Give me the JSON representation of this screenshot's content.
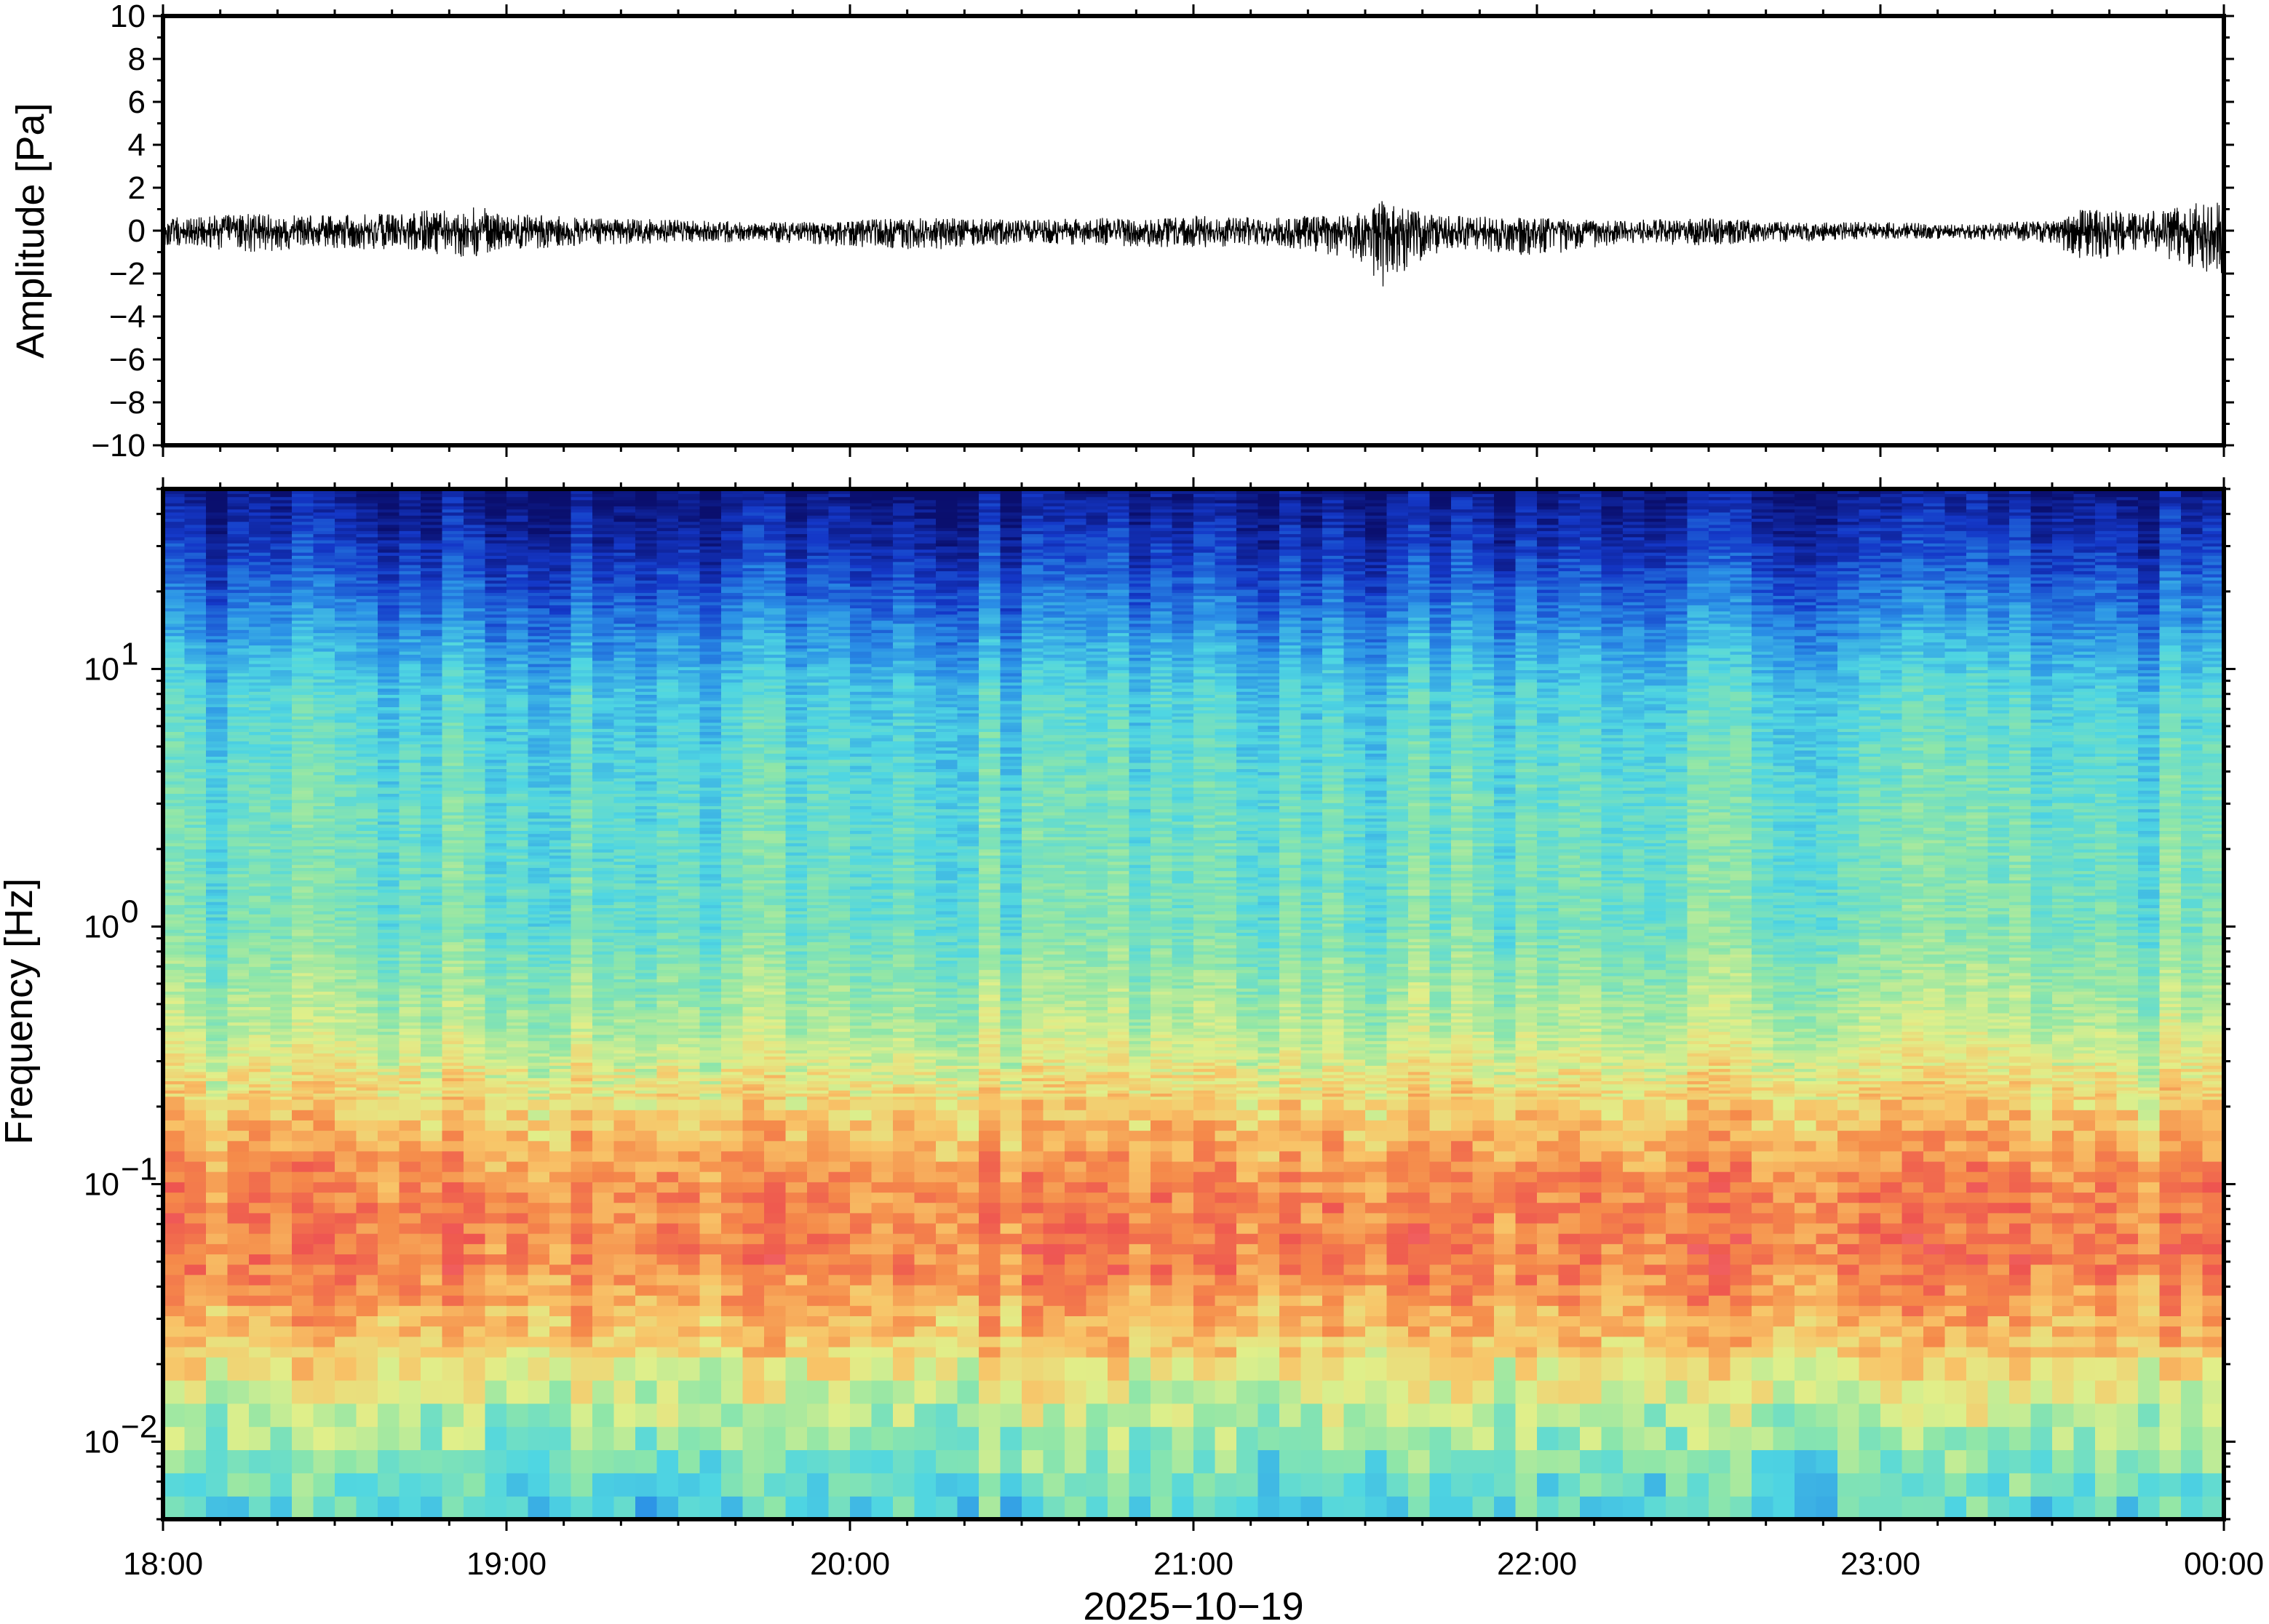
{
  "chart_data": [
    {
      "type": "line",
      "panel": "waveform",
      "ylabel": "Amplitude [Pa]",
      "ylim": [
        -10,
        10
      ],
      "yticks": [
        -10,
        -8,
        -6,
        -4,
        -2,
        0,
        2,
        4,
        6,
        8,
        10
      ],
      "ytick_labels": [
        "−10",
        "−8",
        "−6",
        "−4",
        "−2",
        "0",
        "2",
        "4",
        "6",
        "8",
        "10"
      ],
      "xlim": [
        "18:00",
        "00:00"
      ],
      "series": [
        {
          "color": "#000000",
          "envelope_hours": [
            18.0,
            18.25,
            18.5,
            18.75,
            18.9,
            19.0,
            19.25,
            19.5,
            19.75,
            20.0,
            20.25,
            20.5,
            20.75,
            21.0,
            21.25,
            21.5,
            21.55,
            21.6,
            21.75,
            22.0,
            22.25,
            22.5,
            22.75,
            23.0,
            23.25,
            23.5,
            23.6,
            23.75,
            24.0
          ],
          "envelope_max": [
            0.6,
            0.8,
            0.7,
            0.9,
            1.2,
            0.8,
            0.6,
            0.5,
            0.4,
            0.5,
            0.6,
            0.5,
            0.6,
            0.7,
            0.6,
            0.9,
            1.4,
            1.1,
            0.7,
            0.6,
            0.5,
            0.6,
            0.4,
            0.4,
            0.3,
            0.5,
            1.1,
            0.8,
            1.5
          ],
          "envelope_min": [
            -0.7,
            -1.0,
            -0.8,
            -1.0,
            -1.3,
            -0.9,
            -0.7,
            -0.6,
            -0.5,
            -0.8,
            -0.9,
            -0.6,
            -0.7,
            -0.8,
            -0.7,
            -1.5,
            -3.1,
            -2.0,
            -0.8,
            -1.2,
            -0.6,
            -0.7,
            -0.5,
            -0.4,
            -0.4,
            -0.6,
            -1.6,
            -0.9,
            -2.2
          ]
        }
      ]
    },
    {
      "type": "heatmap",
      "panel": "spectrogram",
      "ylabel": "Frequency [Hz]",
      "yscale": "log",
      "ylim": [
        0.005,
        50
      ],
      "yticks": [
        0.01,
        0.1,
        1,
        10
      ],
      "ytick_labels": [
        {
          "base": "10",
          "exp": "−2"
        },
        {
          "base": "10",
          "exp": "−1"
        },
        {
          "base": "10",
          "exp": "0"
        },
        {
          "base": "10",
          "exp": "1"
        }
      ],
      "xlabel": "2025−10−19",
      "xticks": [
        "18:00",
        "19:00",
        "20:00",
        "21:00",
        "22:00",
        "23:00",
        "00:00"
      ],
      "xlim_hours": [
        18,
        24
      ],
      "colormap": "rainbow",
      "colormap_stops": [
        "#0a0f6e",
        "#1438c8",
        "#2a8fe6",
        "#4fd6e2",
        "#8fe6a8",
        "#e0ef8a",
        "#f8c468",
        "#f58a4a",
        "#ee5550",
        "#f57a8a"
      ],
      "band_levels": [
        {
          "freq_hz": 50,
          "level": 0.02
        },
        {
          "freq_hz": 30,
          "level": 0.1
        },
        {
          "freq_hz": 15,
          "level": 0.22
        },
        {
          "freq_hz": 8,
          "level": 0.33
        },
        {
          "freq_hz": 3,
          "level": 0.38
        },
        {
          "freq_hz": 1,
          "level": 0.4
        },
        {
          "freq_hz": 0.4,
          "level": 0.5
        },
        {
          "freq_hz": 0.2,
          "level": 0.64
        },
        {
          "freq_hz": 0.1,
          "level": 0.78
        },
        {
          "freq_hz": 0.05,
          "level": 0.8
        },
        {
          "freq_hz": 0.025,
          "level": 0.66
        },
        {
          "freq_hz": 0.015,
          "level": 0.54
        },
        {
          "freq_hz": 0.008,
          "level": 0.4
        },
        {
          "freq_hz": 0.005,
          "level": 0.34
        }
      ]
    }
  ]
}
